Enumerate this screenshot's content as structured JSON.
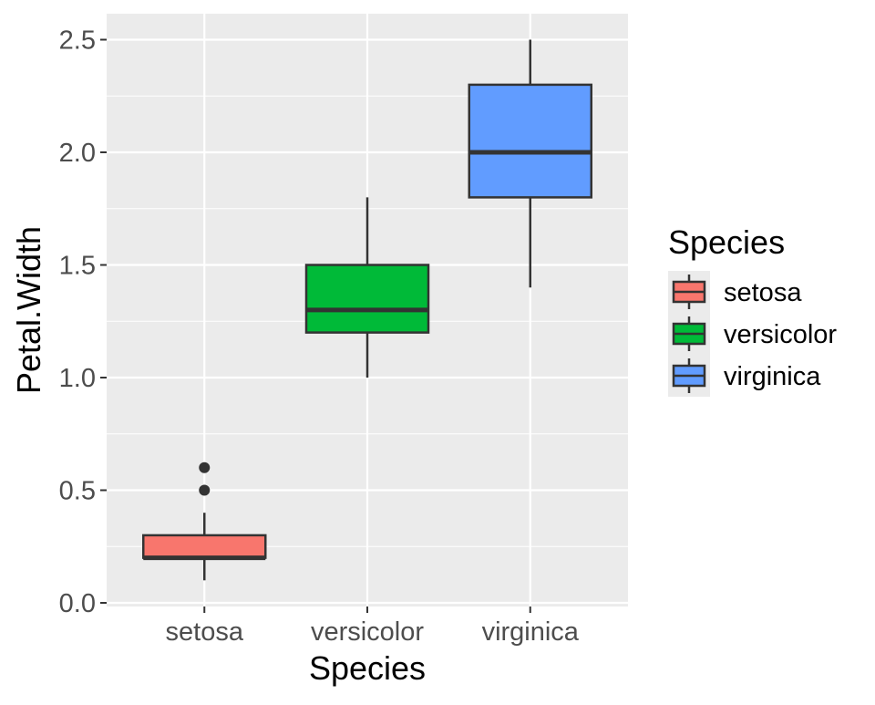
{
  "chart_data": {
    "type": "boxplot",
    "title": "",
    "xlabel": "Species",
    "ylabel": "Petal.Width",
    "ylim": [
      0,
      2.6
    ],
    "y_ticks": [
      0.0,
      0.5,
      1.0,
      1.5,
      2.0,
      2.5
    ],
    "y_tick_labels": [
      "0.0",
      "0.5",
      "1.0",
      "1.5",
      "2.0",
      "2.5"
    ],
    "categories": [
      "setosa",
      "versicolor",
      "virginica"
    ],
    "boxes": [
      {
        "category": "setosa",
        "whisker_low": 0.1,
        "q1": 0.2,
        "median": 0.2,
        "q3": 0.3,
        "whisker_high": 0.4,
        "outliers": [
          0.5,
          0.6
        ],
        "color": "#F8766D"
      },
      {
        "category": "versicolor",
        "whisker_low": 1.0,
        "q1": 1.2,
        "median": 1.3,
        "q3": 1.5,
        "whisker_high": 1.8,
        "outliers": [],
        "color": "#00BA38"
      },
      {
        "category": "virginica",
        "whisker_low": 1.4,
        "q1": 1.8,
        "median": 2.0,
        "q3": 2.3,
        "whisker_high": 2.5,
        "outliers": [],
        "color": "#619CFF"
      }
    ],
    "legend": {
      "title": "Species",
      "position": "right",
      "entries": [
        {
          "label": "setosa",
          "color": "#F8766D"
        },
        {
          "label": "versicolor",
          "color": "#00BA38"
        },
        {
          "label": "virginica",
          "color": "#619CFF"
        }
      ]
    },
    "panel_background": "#EBEBEB",
    "grid_color": "#FFFFFF",
    "box_outline": "#333333",
    "outlier_color": "#333333",
    "grid": true
  }
}
